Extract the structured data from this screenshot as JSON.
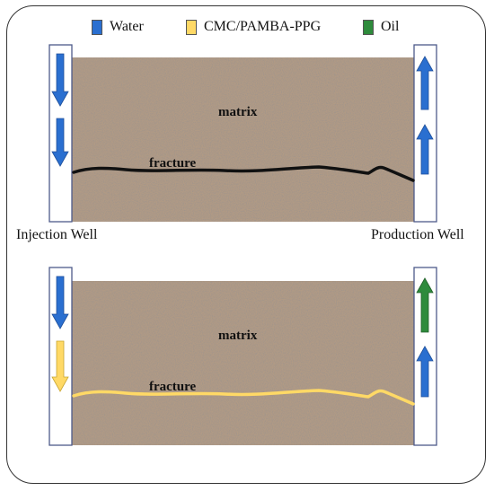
{
  "legend": {
    "water": {
      "label": "Water",
      "color": "#2a6fd0"
    },
    "ppg": {
      "label": "CMC/PAMBA-PPG",
      "color": "#ffd966"
    },
    "oil": {
      "label": "Oil",
      "color": "#2e8b3c"
    }
  },
  "labels": {
    "injection_well": "Injection Well",
    "production_well": "Production Well",
    "matrix_top": "matrix",
    "fracture_top": "fracture",
    "matrix_bottom": "matrix",
    "fracture_bottom": "fracture"
  },
  "colors": {
    "rock": "#b09a85",
    "fracture_top": "#111111",
    "fracture_bottom": "#ffd966"
  }
}
